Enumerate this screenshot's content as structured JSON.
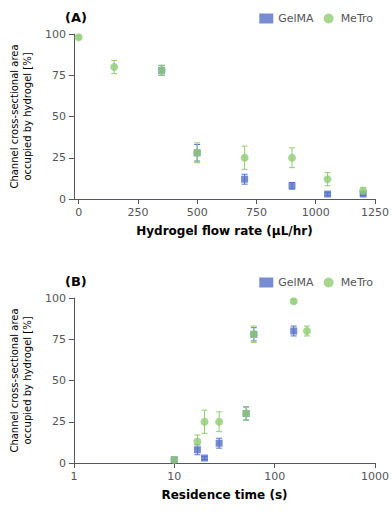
{
  "chart_data": [
    {
      "type": "scatter",
      "annotation": "(A)",
      "xlabel": "Hydrogel flow rate (μL/hr)",
      "ylabel": "Channel cross-sectional area\noccupied by hydrogel [%]",
      "xlim": [
        -20,
        1250
      ],
      "xticks": [
        0,
        250,
        500,
        750,
        1000,
        1250
      ],
      "ylim": [
        0,
        100
      ],
      "yticks": [
        0,
        25,
        50,
        75,
        100
      ],
      "grid": false,
      "legend": "upper right",
      "series": [
        {
          "name": "GelMA",
          "marker": "square",
          "x": [
            350,
            500,
            700,
            900,
            1050,
            1200
          ],
          "values": [
            78,
            28,
            12,
            8,
            3,
            3
          ],
          "yerr": [
            3,
            5,
            3,
            2,
            1,
            1
          ]
        },
        {
          "name": "MeTro",
          "marker": "circle",
          "x": [
            0,
            150,
            350,
            500,
            700,
            900,
            1050,
            1200
          ],
          "values": [
            98,
            80,
            78,
            28,
            25,
            25,
            12,
            5
          ],
          "yerr": [
            1,
            4,
            3,
            6,
            7,
            6,
            4,
            2
          ]
        }
      ]
    },
    {
      "type": "scatter",
      "annotation": "(B)",
      "xlabel": "Residence time (s)",
      "ylabel": "Channel cross-sectional area\noccupied by hydrogel [%]",
      "log": "x",
      "xlim": [
        1,
        1000
      ],
      "xticks": [
        1,
        10,
        100,
        1000
      ],
      "ylim": [
        0,
        100
      ],
      "yticks": [
        0,
        25,
        50,
        75,
        100
      ],
      "grid": false,
      "legend": "upper right",
      "series": [
        {
          "name": "GelMA",
          "marker": "square",
          "x": [
            10,
            17,
            20,
            28,
            52,
            62,
            155
          ],
          "values": [
            2,
            8,
            3,
            12,
            30,
            78,
            80
          ],
          "yerr": [
            1,
            3,
            1,
            3,
            4,
            4,
            3
          ]
        },
        {
          "name": "MeTro",
          "marker": "circle",
          "x": [
            10,
            17,
            20,
            28,
            52,
            62,
            155,
            210
          ],
          "values": [
            2,
            13,
            25,
            25,
            30,
            78,
            98,
            80
          ],
          "yerr": [
            1,
            4,
            7,
            6,
            4,
            5,
            1,
            3
          ]
        }
      ]
    }
  ]
}
